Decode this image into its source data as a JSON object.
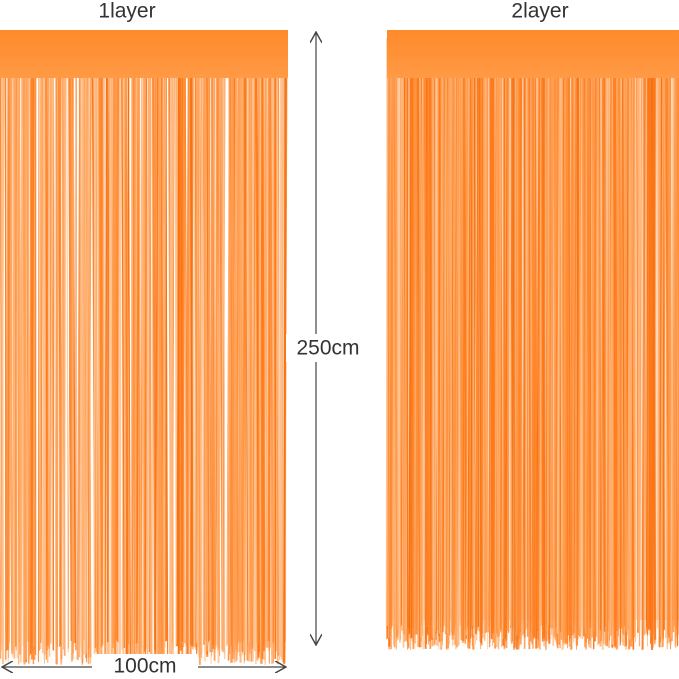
{
  "panels": [
    {
      "label": "1layer"
    },
    {
      "label": "2layer"
    }
  ],
  "height_label": "250cm",
  "width_label": "100cm"
}
